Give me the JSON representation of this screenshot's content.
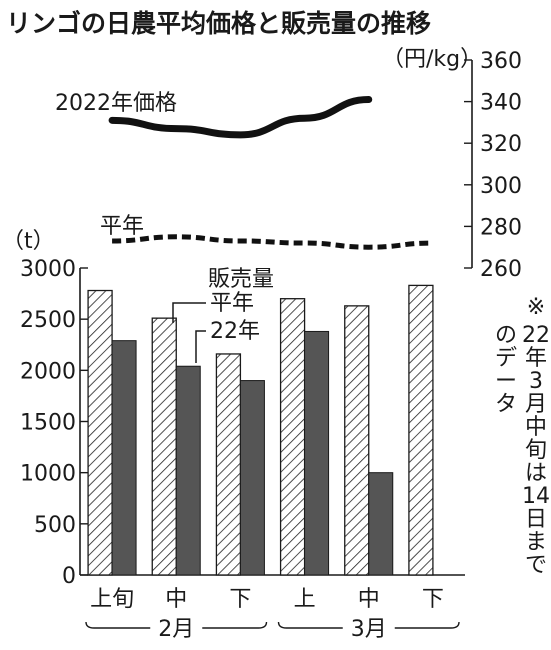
{
  "chart_data": {
    "type": "bar",
    "title": "リンゴの日農平均価格と販売量の推移",
    "categories": [
      "上旬",
      "中",
      "下",
      "上",
      "中",
      "下"
    ],
    "month_groups": [
      {
        "label": "2月",
        "categories": [
          "上旬",
          "中",
          "下"
        ]
      },
      {
        "label": "3月",
        "categories": [
          "上",
          "中",
          "下"
        ]
      }
    ],
    "sales_axis": {
      "unit_label": "（t）",
      "ylim": [
        0,
        3000
      ],
      "ticks": [
        "0",
        "500",
        "1000",
        "1500",
        "2000",
        "2500",
        "3000"
      ]
    },
    "price_axis": {
      "unit_label": "（円/kg）",
      "ylim": [
        260,
        360
      ],
      "ticks": [
        "260",
        "280",
        "300",
        "320",
        "340",
        "360"
      ]
    },
    "sales_legend_title": "販売量",
    "series": [
      {
        "name": "平年",
        "kind": "bar",
        "pattern": "hatched",
        "axis": "sales",
        "values": [
          2780,
          2510,
          2160,
          2700,
          2630,
          2830
        ]
      },
      {
        "name": "22年",
        "kind": "bar",
        "pattern": "solid",
        "color": "#555555",
        "axis": "sales",
        "values": [
          2290,
          2040,
          1900,
          2380,
          1000,
          null
        ]
      },
      {
        "name": "2022年価格",
        "kind": "line",
        "style": "solid",
        "color": "#111111",
        "axis": "price",
        "values": [
          331,
          327,
          324,
          332,
          341,
          null
        ]
      },
      {
        "name": "平年",
        "kind": "line",
        "style": "dashed",
        "color": "#111111",
        "axis": "price",
        "values": [
          273,
          275,
          273,
          272,
          270,
          272
        ]
      }
    ],
    "note": "※22年3月中旬は14日までのデータ"
  }
}
